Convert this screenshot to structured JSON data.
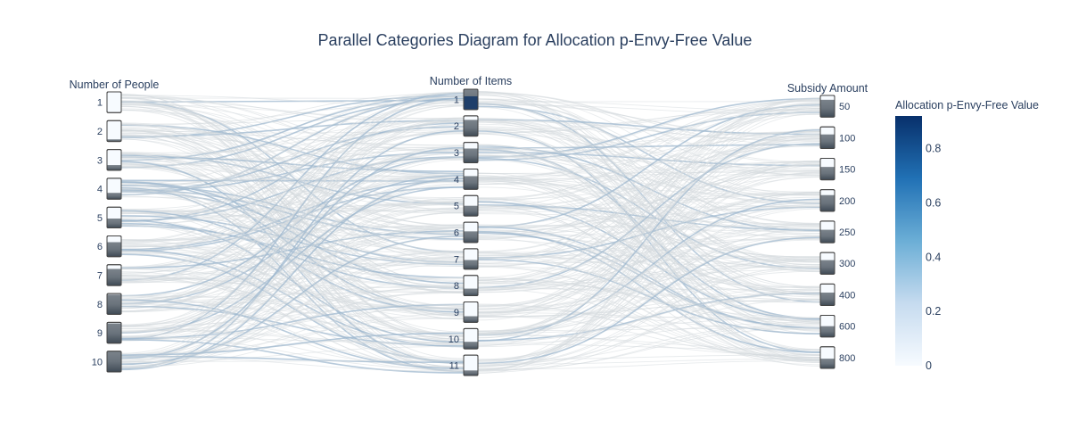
{
  "chart_data": {
    "type": "parallel-categories",
    "title": "Parallel Categories Diagram for Allocation p-Envy-Free Value",
    "dimensions": [
      {
        "label": "Number of People",
        "categories": [
          "1",
          "2",
          "3",
          "4",
          "5",
          "6",
          "7",
          "8",
          "9",
          "10"
        ],
        "share_colored": [
          0.0,
          0.1,
          0.25,
          0.3,
          0.45,
          0.7,
          0.8,
          0.95,
          0.95,
          1.0
        ]
      },
      {
        "label": "Number of Items",
        "categories": [
          "1",
          "2",
          "3",
          "4",
          "5",
          "6",
          "7",
          "8",
          "9",
          "10",
          "11"
        ],
        "share_colored": [
          1.0,
          0.8,
          0.7,
          0.65,
          0.5,
          0.55,
          0.45,
          0.35,
          0.3,
          0.35,
          0.25
        ]
      },
      {
        "label": "Subsidy Amount",
        "categories": [
          "50",
          "100",
          "150",
          "200",
          "250",
          "300",
          "400",
          "600",
          "800"
        ],
        "share_colored": [
          0.8,
          0.65,
          0.6,
          0.75,
          0.6,
          0.65,
          0.6,
          0.5,
          0.45
        ]
      }
    ],
    "colorbar": {
      "title": "Allocation p-Envy-Free Value",
      "range": [
        0,
        0.92
      ],
      "ticks": [
        0,
        0.2,
        0.4,
        0.6,
        0.8
      ],
      "tick_labels": [
        "0",
        "0.2",
        "0.4",
        "0.6",
        "0.8"
      ],
      "colors": [
        "#f7fbff",
        "#c6dbef",
        "#6baed6",
        "#2171b5",
        "#08306b"
      ]
    },
    "link_color_low": "#d5dade",
    "link_color_high": "#9fb8cf"
  }
}
